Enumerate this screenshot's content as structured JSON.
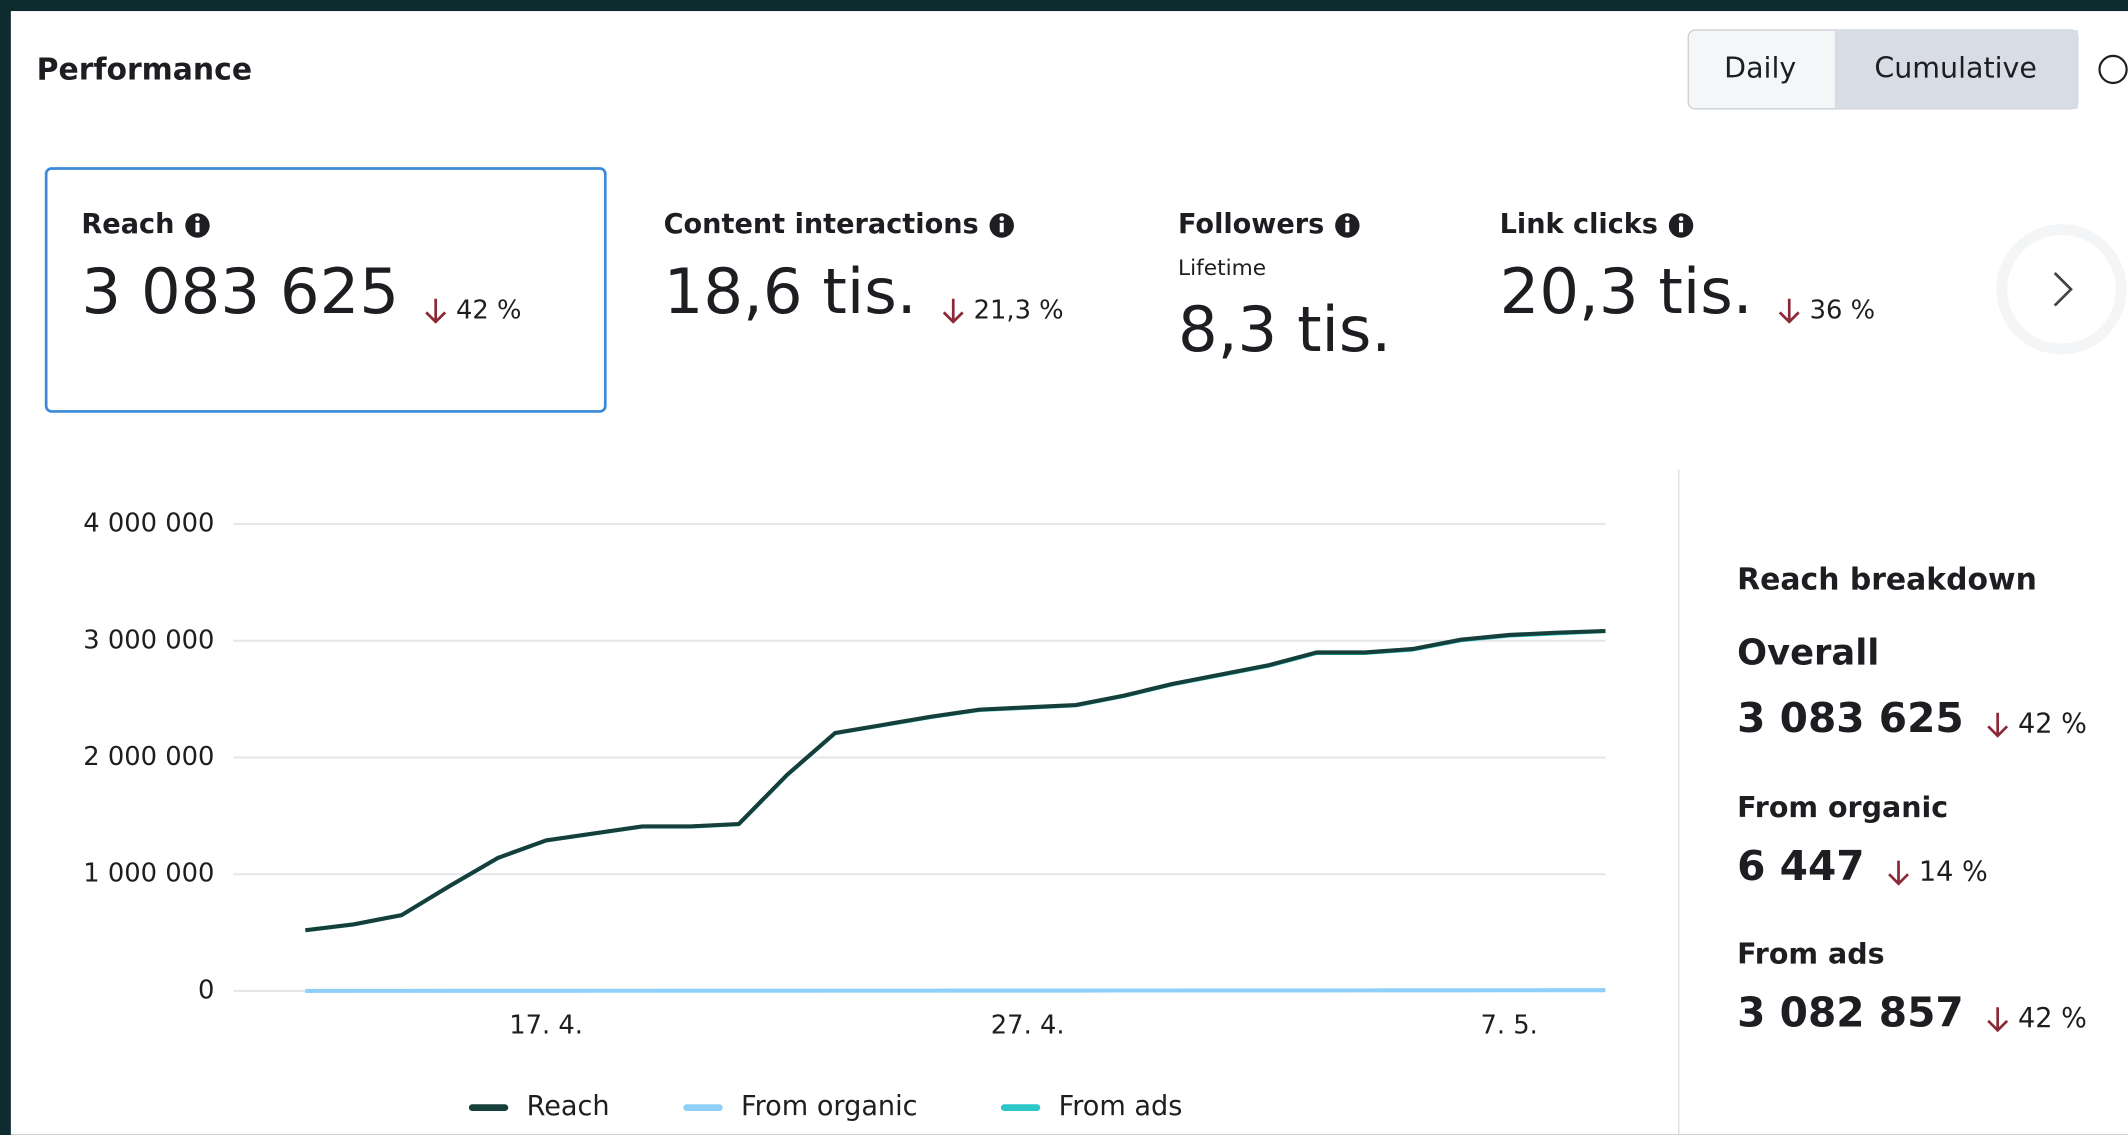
{
  "header": {
    "title": "Performance"
  },
  "toggle": [
    "Daily",
    "Cumulative"
  ],
  "metrics": [
    {
      "label": "Reach",
      "value": "3 083 625",
      "change": "42 %"
    },
    {
      "label": "Content interactions",
      "value": "18,6 tis.",
      "change": "21,3 %"
    },
    {
      "label": "Followers",
      "sublabel": "Lifetime",
      "value": "8,3 tis."
    },
    {
      "label": "Link clicks",
      "value": "20,3 tis.",
      "change": "36 %"
    }
  ],
  "chart_data": {
    "type": "line",
    "categories": [
      null,
      null,
      null,
      null,
      null,
      "17. 4.",
      null,
      null,
      null,
      null,
      null,
      null,
      null,
      null,
      null,
      "27. 4.",
      null,
      null,
      null,
      null,
      null,
      null,
      null,
      null,
      null,
      "7. 5.",
      null,
      null
    ],
    "series": [
      {
        "name": "Reach",
        "color": "#163f3b",
        "values": [
          520000,
          570000,
          650000,
          900000,
          1140000,
          1290000,
          1350000,
          1410000,
          1410000,
          1430000,
          1850000,
          2210000,
          2280000,
          2350000,
          2410000,
          2430000,
          2450000,
          2530000,
          2630000,
          2710000,
          2790000,
          2900000,
          2900000,
          2930000,
          3010000,
          3050000,
          3070000,
          3083625
        ]
      },
      {
        "name": "From organic",
        "color": "#8fd0fb",
        "values": [
          200,
          400,
          600,
          800,
          1000,
          1200,
          1400,
          1600,
          1800,
          2000,
          2200,
          2400,
          2600,
          2800,
          3000,
          3200,
          3400,
          3600,
          3800,
          4000,
          4200,
          4500,
          4800,
          5100,
          5400,
          5700,
          6100,
          6447
        ]
      },
      {
        "name": "From ads",
        "color": "#2cc5c8",
        "values": [
          519800,
          569600,
          649400,
          899200,
          1139000,
          1288800,
          1348600,
          1408400,
          1408200,
          1428000,
          1847800,
          2207600,
          2277400,
          2347200,
          2407000,
          2426800,
          2446600,
          2526400,
          2626200,
          2706000,
          2785800,
          2895500,
          2895200,
          2924900,
          3004600,
          3044300,
          3063900,
          3082857
        ]
      }
    ],
    "ylim": [
      0,
      4000000
    ],
    "yticks": [
      0,
      {
        "value": 1000000,
        "label": "1 000 000"
      },
      {
        "value": 2000000,
        "label": "2 000 000"
      },
      {
        "value": 3000000,
        "label": "3 000 000"
      },
      {
        "value": 4000000,
        "label": "4 000 000"
      }
    ],
    "grid": true,
    "legend": "bottom"
  },
  "breakdown": {
    "title": "Reach breakdown",
    "items": [
      {
        "label": "Overall",
        "value": "3 083 625",
        "change": "42 %"
      },
      {
        "label": "From organic",
        "value": "6 447",
        "change": "14 %"
      },
      {
        "label": "From ads",
        "value": "3 082 857",
        "change": "42 %"
      }
    ]
  }
}
